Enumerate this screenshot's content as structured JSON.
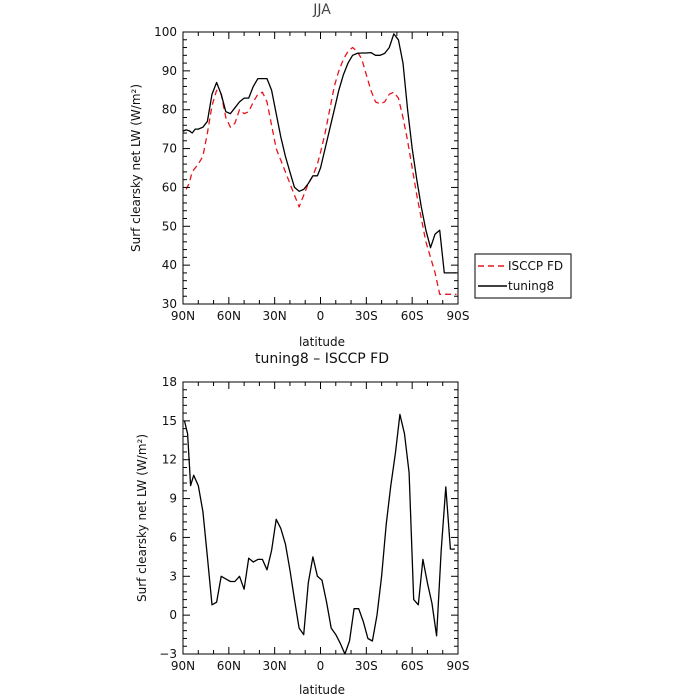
{
  "chart_data": [
    {
      "type": "line",
      "title": "JJA",
      "xlabel": "latitude",
      "ylabel": "Surf clearsky net LW (W/m²)",
      "xlim": [
        90,
        -90
      ],
      "ylim": [
        30,
        100
      ],
      "xticks": [
        90,
        60,
        30,
        0,
        -30,
        -60,
        -90
      ],
      "xtick_labels": [
        "90N",
        "60N",
        "30N",
        "0",
        "30S",
        "60S",
        "90S"
      ],
      "yticks": [
        30,
        40,
        50,
        60,
        70,
        80,
        90,
        100
      ],
      "ytick_labels": [
        "30",
        "40",
        "50",
        "60",
        "70",
        "80",
        "90",
        "100"
      ],
      "legend": "right",
      "grid": false,
      "series": [
        {
          "name": "ISCCP FD",
          "color": "#e8141c",
          "dash": "dashed",
          "x": [
            88,
            86,
            84,
            82,
            80,
            77,
            74,
            71,
            68,
            65,
            62,
            59,
            56,
            53,
            50,
            47,
            44,
            41,
            38,
            35,
            32,
            29,
            26,
            23,
            20,
            17,
            14,
            11,
            8,
            5,
            2,
            0,
            -3,
            -6,
            -9,
            -12,
            -15,
            -18,
            -21,
            -24,
            -27,
            -30,
            -33,
            -36,
            -39,
            -42,
            -45,
            -48,
            -51,
            -54,
            -57,
            -60,
            -63,
            -66,
            -69,
            -72,
            -75,
            -78,
            -81,
            -84,
            -87,
            -89
          ],
          "y": [
            59.5,
            61,
            64,
            65,
            66,
            68,
            74,
            81,
            85,
            84,
            78,
            75.5,
            76.5,
            80,
            79,
            79.5,
            82,
            84,
            84.5,
            82,
            76,
            70,
            67,
            64,
            61,
            58,
            55,
            58,
            61,
            63,
            66,
            69,
            74,
            80,
            86,
            90,
            93,
            95,
            96,
            95,
            93,
            89,
            85,
            82,
            81.5,
            82,
            84,
            84.5,
            83,
            78,
            72,
            65,
            58,
            52,
            46,
            42,
            38,
            32.5,
            32.5,
            32.5,
            32.5,
            32.5
          ]
        },
        {
          "name": "tuning8",
          "color": "#000000",
          "dash": "solid",
          "x": [
            90,
            88,
            86,
            84,
            82,
            80,
            77,
            74,
            71,
            68,
            65,
            62,
            59,
            56,
            53,
            50,
            47,
            44,
            41,
            38,
            35,
            32,
            29,
            26,
            23,
            20,
            17,
            14,
            11,
            8,
            5,
            2,
            0,
            -3,
            -6,
            -9,
            -12,
            -15,
            -18,
            -21,
            -24,
            -27,
            -30,
            -33,
            -36,
            -39,
            -42,
            -45,
            -48,
            -51,
            -54,
            -57,
            -60,
            -63,
            -66,
            -69,
            -72,
            -75,
            -78,
            -81,
            -84,
            -87,
            -89
          ],
          "y": [
            74.5,
            74.8,
            74.6,
            74,
            75,
            75,
            75.5,
            77,
            84,
            87,
            84,
            79.5,
            79,
            80.5,
            82,
            83,
            83,
            86,
            88,
            88,
            88,
            85,
            79,
            73,
            68,
            64,
            60,
            59,
            59.5,
            61,
            63,
            63,
            65,
            70,
            75,
            80,
            85,
            89,
            92,
            94,
            94.5,
            94.6,
            94.6,
            94.7,
            94,
            94,
            94.5,
            96,
            99.5,
            98,
            92,
            80,
            70,
            62,
            55,
            49,
            44.5,
            48,
            49,
            38,
            38,
            38,
            38
          ]
        }
      ]
    },
    {
      "type": "line",
      "title": "tuning8 – ISCCP FD",
      "xlabel": "latitude",
      "ylabel": "Surf clearsky net LW (W/m²)",
      "xlim": [
        90,
        -90
      ],
      "ylim": [
        -3,
        18
      ],
      "xticks": [
        90,
        60,
        30,
        0,
        -30,
        -60,
        -90
      ],
      "xtick_labels": [
        "90N",
        "60N",
        "30N",
        "0",
        "30S",
        "60S",
        "90S"
      ],
      "yticks": [
        -3,
        0,
        3,
        6,
        9,
        12,
        15,
        18
      ],
      "ytick_labels": [
        "−3",
        "0",
        "3",
        "6",
        "9",
        "12",
        "15",
        "18"
      ],
      "grid": false,
      "series": [
        {
          "color": "#000000",
          "dash": "solid",
          "x": [
            89,
            87,
            85,
            83,
            80,
            77,
            74,
            71,
            68,
            65,
            62,
            59,
            56,
            53,
            50,
            47,
            44,
            41,
            38,
            35,
            32,
            29,
            26,
            23,
            20,
            17,
            14,
            11,
            8,
            5,
            2,
            -1,
            -4,
            -7,
            -10,
            -13,
            -16,
            -19,
            -22,
            -25,
            -28,
            -31,
            -34,
            -37,
            -40,
            -43,
            -46,
            -49,
            -52,
            -55,
            -58,
            -61,
            -64,
            -67,
            -70,
            -73,
            -76,
            -79,
            -82,
            -85,
            -88
          ],
          "y": [
            15,
            14,
            10,
            10.8,
            10,
            8,
            4.5,
            0.8,
            1,
            3,
            2.8,
            2.6,
            2.6,
            3,
            2,
            4.4,
            4.1,
            4.3,
            4.3,
            3.5,
            5,
            7.4,
            6.7,
            5.5,
            3.5,
            1.2,
            -1,
            -1.5,
            2.5,
            4.5,
            3,
            2.7,
            1,
            -1,
            -1.5,
            -2.2,
            -3,
            -2,
            0.5,
            0.5,
            -0.5,
            -1.8,
            -2,
            0,
            3,
            7,
            10,
            12.5,
            15.5,
            14,
            11,
            1.2,
            0.8,
            4.3,
            2.5,
            0.9,
            -1.6,
            5,
            9.9,
            5.1,
            5.1
          ]
        }
      ]
    }
  ]
}
